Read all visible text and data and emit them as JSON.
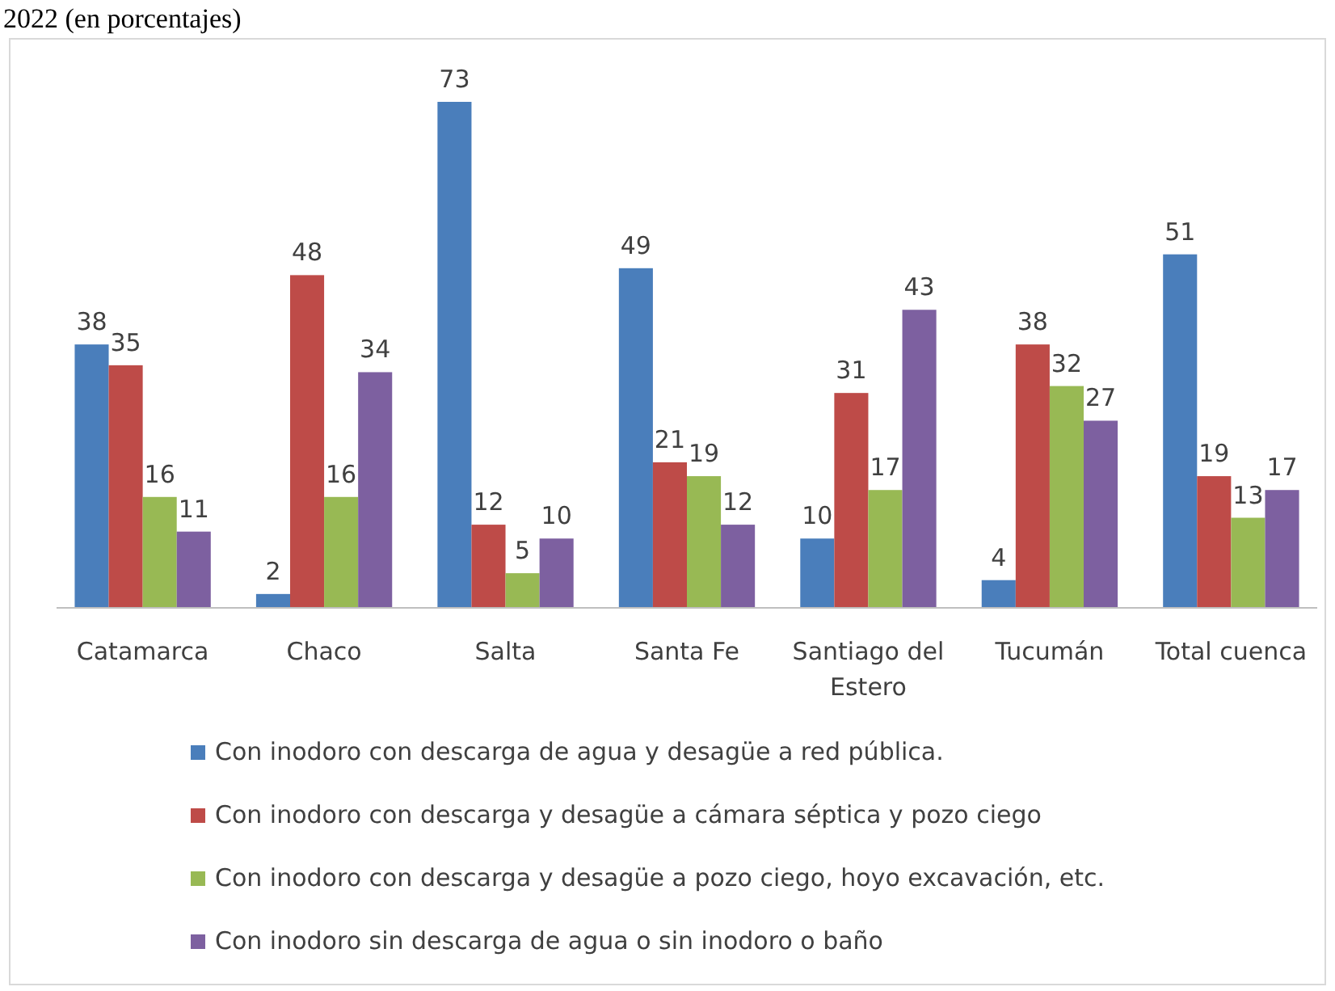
{
  "chart_data": {
    "type": "bar",
    "title": "2022 (en porcentajes)",
    "categories": [
      "Catamarca",
      "Chaco",
      "Salta",
      "Santa Fe",
      "Santiago del Estero",
      "Tucumán",
      "Total cuenca"
    ],
    "series": [
      {
        "name": "Con inodoro con descarga de agua y desagüe a red pública.",
        "color": "#4a7ebb",
        "values": [
          38,
          2,
          73,
          49,
          10,
          4,
          51
        ]
      },
      {
        "name": "Con inodoro con descarga y desagüe a cámara séptica y pozo ciego",
        "color": "#be4b48",
        "values": [
          35,
          48,
          12,
          21,
          31,
          38,
          19
        ]
      },
      {
        "name": "Con inodoro con descarga y desagüe a pozo ciego, hoyo excavación, etc.",
        "color": "#98b954",
        "values": [
          16,
          16,
          5,
          19,
          17,
          32,
          13
        ]
      },
      {
        "name": "Con inodoro sin descarga de agua o sin inodoro o baño",
        "color": "#7d60a0",
        "values": [
          11,
          34,
          10,
          12,
          43,
          27,
          17
        ]
      }
    ],
    "data_labels": true,
    "legend": "bottom",
    "grid": false
  }
}
